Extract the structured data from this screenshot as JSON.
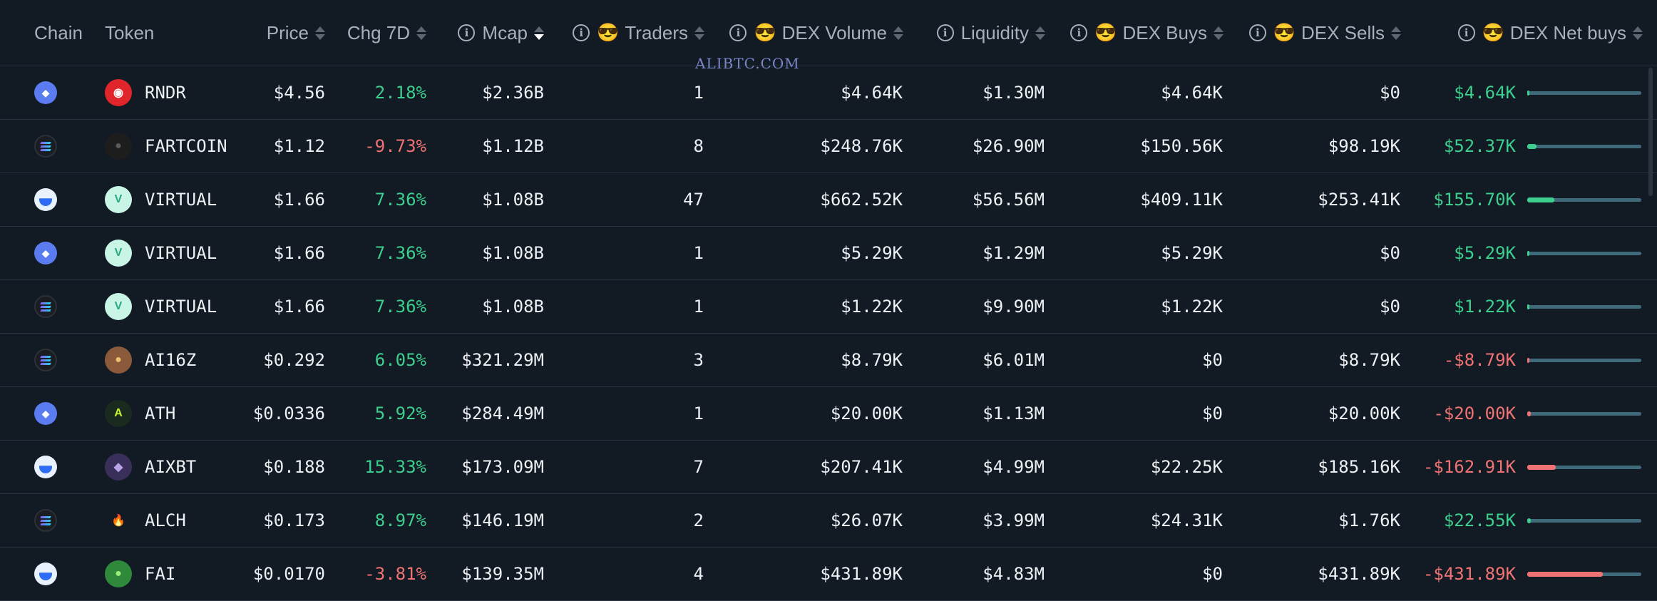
{
  "header": {
    "chain": "Chain",
    "token": "Token",
    "price": "Price",
    "chg7d": "Chg 7D",
    "mcap": "Mcap",
    "traders": "Traders",
    "dex_volume": "DEX Volume",
    "liquidity": "Liquidity",
    "dex_buys": "DEX Buys",
    "dex_sells": "DEX Sells",
    "dex_net_buys": "DEX Net buys",
    "info_glyph": "i",
    "smart_emoji": "😎"
  },
  "watermark": "ALIBTC.COM",
  "rows": [
    {
      "chain": "ethereum",
      "token": "RNDR",
      "price": "$4.56",
      "chg": "2.18%",
      "chg_dir": "pos",
      "mcap": "$2.36B",
      "traders": "1",
      "volume": "$4.64K",
      "liquidity": "$1.30M",
      "buys": "$4.64K",
      "sells": "$0",
      "net": "$4.64K",
      "net_dir": "pos",
      "net_fill": 0.01
    },
    {
      "chain": "solana",
      "token": "FARTCOIN",
      "price": "$1.12",
      "chg": "-9.73%",
      "chg_dir": "neg",
      "mcap": "$1.12B",
      "traders": "8",
      "volume": "$248.76K",
      "liquidity": "$26.90M",
      "buys": "$150.56K",
      "sells": "$98.19K",
      "net": "$52.37K",
      "net_dir": "pos",
      "net_fill": 0.08
    },
    {
      "chain": "base",
      "token": "VIRTUAL",
      "price": "$1.66",
      "chg": "7.36%",
      "chg_dir": "pos",
      "mcap": "$1.08B",
      "traders": "47",
      "volume": "$662.52K",
      "liquidity": "$56.56M",
      "buys": "$409.11K",
      "sells": "$253.41K",
      "net": "$155.70K",
      "net_dir": "pos",
      "net_fill": 0.24
    },
    {
      "chain": "ethereum",
      "token": "VIRTUAL",
      "price": "$1.66",
      "chg": "7.36%",
      "chg_dir": "pos",
      "mcap": "$1.08B",
      "traders": "1",
      "volume": "$5.29K",
      "liquidity": "$1.29M",
      "buys": "$5.29K",
      "sells": "$0",
      "net": "$5.29K",
      "net_dir": "pos",
      "net_fill": 0.01
    },
    {
      "chain": "solana",
      "token": "VIRTUAL",
      "price": "$1.66",
      "chg": "7.36%",
      "chg_dir": "pos",
      "mcap": "$1.08B",
      "traders": "1",
      "volume": "$1.22K",
      "liquidity": "$9.90M",
      "buys": "$1.22K",
      "sells": "$0",
      "net": "$1.22K",
      "net_dir": "pos",
      "net_fill": 0.005
    },
    {
      "chain": "solana",
      "token": "AI16Z",
      "price": "$0.292",
      "chg": "6.05%",
      "chg_dir": "pos",
      "mcap": "$321.29M",
      "traders": "3",
      "volume": "$8.79K",
      "liquidity": "$6.01M",
      "buys": "$0",
      "sells": "$8.79K",
      "net": "-$8.79K",
      "net_dir": "neg",
      "net_fill": 0.01
    },
    {
      "chain": "ethereum",
      "token": "ATH",
      "price": "$0.0336",
      "chg": "5.92%",
      "chg_dir": "pos",
      "mcap": "$284.49M",
      "traders": "1",
      "volume": "$20.00K",
      "liquidity": "$1.13M",
      "buys": "$0",
      "sells": "$20.00K",
      "net": "-$20.00K",
      "net_dir": "neg",
      "net_fill": 0.03
    },
    {
      "chain": "base",
      "token": "AIXBT",
      "price": "$0.188",
      "chg": "15.33%",
      "chg_dir": "pos",
      "mcap": "$173.09M",
      "traders": "7",
      "volume": "$207.41K",
      "liquidity": "$4.99M",
      "buys": "$22.25K",
      "sells": "$185.16K",
      "net": "-$162.91K",
      "net_dir": "neg",
      "net_fill": 0.25
    },
    {
      "chain": "solana",
      "token": "ALCH",
      "price": "$0.173",
      "chg": "8.97%",
      "chg_dir": "pos",
      "mcap": "$146.19M",
      "traders": "2",
      "volume": "$26.07K",
      "liquidity": "$3.99M",
      "buys": "$24.31K",
      "sells": "$1.76K",
      "net": "$22.55K",
      "net_dir": "pos",
      "net_fill": 0.03
    },
    {
      "chain": "base",
      "token": "FAI",
      "price": "$0.0170",
      "chg": "-3.81%",
      "chg_dir": "neg",
      "mcap": "$139.35M",
      "traders": "4",
      "volume": "$431.89K",
      "liquidity": "$4.83M",
      "buys": "$0",
      "sells": "$431.89K",
      "net": "-$431.89K",
      "net_dir": "neg",
      "net_fill": 0.66
    }
  ],
  "colors": {
    "background": "#121a24",
    "positive": "#3ccf8e",
    "negative": "#f07373",
    "bar_track": "#3f6a7a"
  },
  "token_logos": {
    "RNDR": {
      "bg": "#e0262b",
      "fg": "#ffffff",
      "glyph": "◉"
    },
    "FARTCOIN": {
      "bg": "#1d1d1d",
      "fg": "#5a5a5a",
      "glyph": "●"
    },
    "VIRTUAL": {
      "bg": "#c9f5e6",
      "fg": "#2aa884",
      "glyph": "V"
    },
    "AI16Z": {
      "bg": "#8a5a3a",
      "fg": "#f0c070",
      "glyph": "●"
    },
    "ATH": {
      "bg": "#1b2a1f",
      "fg": "#c6f432",
      "glyph": "A"
    },
    "AIXBT": {
      "bg": "#3a2f5a",
      "fg": "#b9a4e8",
      "glyph": "◆"
    },
    "ALCH": {
      "bg": "#121a24",
      "fg": "#f2b233",
      "glyph": "🔥"
    },
    "FAI": {
      "bg": "#2e8a3a",
      "fg": "#9cf07a",
      "glyph": "●"
    }
  }
}
